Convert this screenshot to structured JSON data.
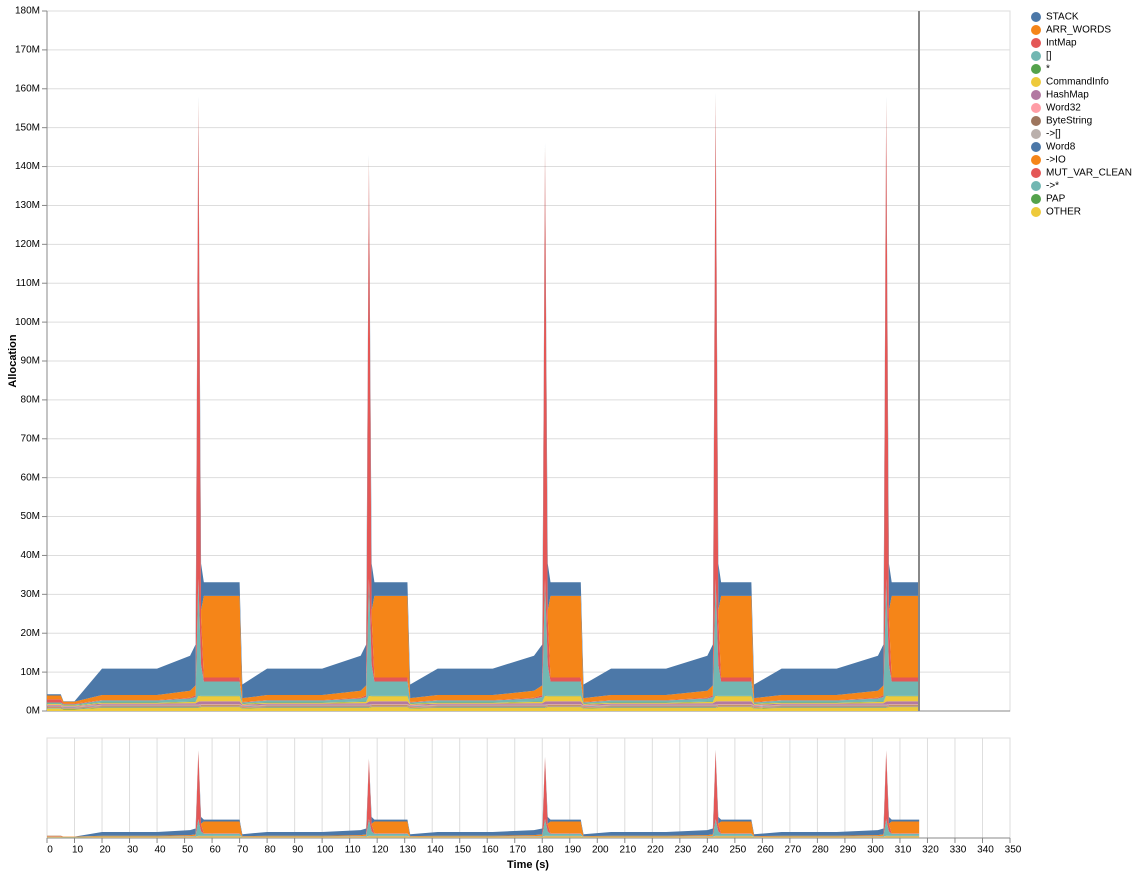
{
  "chart_data": {
    "type": "area",
    "stacked": true,
    "y_label": "Allocation",
    "x_label": "Time (s)",
    "grid": true,
    "legend": "right",
    "x": [
      0,
      5,
      6,
      10,
      20,
      40,
      52,
      54,
      55,
      56,
      57,
      70,
      71,
      80,
      100,
      114,
      116,
      117,
      118,
      119,
      131,
      132,
      142,
      162,
      177,
      180,
      181,
      182,
      183,
      194,
      195,
      205,
      225,
      240,
      242,
      243,
      244,
      245,
      256,
      257,
      267,
      287,
      302,
      304,
      305,
      306,
      307,
      317
    ],
    "xlim": [
      0,
      350
    ],
    "xticks": [
      0,
      10,
      20,
      30,
      40,
      50,
      60,
      70,
      80,
      90,
      100,
      110,
      120,
      130,
      140,
      150,
      160,
      170,
      180,
      190,
      200,
      210,
      220,
      230,
      240,
      250,
      260,
      270,
      280,
      290,
      300,
      310,
      320,
      330,
      340,
      350
    ],
    "ylim": [
      0,
      180
    ],
    "yticks": [
      {
        "value": 0,
        "label": "0M"
      },
      {
        "value": 10,
        "label": "10M"
      },
      {
        "value": 20,
        "label": "20M"
      },
      {
        "value": 30,
        "label": "30M"
      },
      {
        "value": 40,
        "label": "40M"
      },
      {
        "value": 50,
        "label": "50M"
      },
      {
        "value": 60,
        "label": "60M"
      },
      {
        "value": 70,
        "label": "70M"
      },
      {
        "value": 80,
        "label": "80M"
      },
      {
        "value": 90,
        "label": "90M"
      },
      {
        "value": 100,
        "label": "100M"
      },
      {
        "value": 110,
        "label": "110M"
      },
      {
        "value": 120,
        "label": "120M"
      },
      {
        "value": 130,
        "label": "130M"
      },
      {
        "value": 140,
        "label": "140M"
      },
      {
        "value": 150,
        "label": "150M"
      },
      {
        "value": 160,
        "label": "160M"
      },
      {
        "value": 170,
        "label": "170M"
      },
      {
        "value": 180,
        "label": "180M"
      }
    ],
    "series": [
      {
        "name": "STACK",
        "color": "#4c78a8",
        "values": [
          0.3,
          0.3,
          0.1,
          0.1,
          6.8,
          6.8,
          9,
          10.5,
          1,
          12,
          3.5,
          3.5,
          3.5,
          6.8,
          6.8,
          9,
          10.5,
          1,
          12,
          3.5,
          3.5,
          3.5,
          6.8,
          6.8,
          9,
          10.5,
          1,
          12,
          3.5,
          3.5,
          3.5,
          6.8,
          6.8,
          9,
          10.5,
          1,
          12,
          3.5,
          3.5,
          3.5,
          6.8,
          6.8,
          9,
          10.5,
          1,
          12,
          3.5,
          3.5
        ]
      },
      {
        "name": "ARR_WORDS",
        "color": "#f58518",
        "values": [
          1,
          1,
          0.5,
          0.5,
          1.3,
          1.3,
          1.8,
          2.5,
          1,
          2,
          21,
          21,
          1,
          1.3,
          1.3,
          1.8,
          2.5,
          1,
          2,
          21,
          21,
          1,
          1.3,
          1.3,
          1.8,
          2.5,
          1,
          2,
          21,
          21,
          1,
          1.3,
          1.3,
          1.8,
          2.5,
          1,
          2,
          21,
          21,
          1,
          1.3,
          1.3,
          1.8,
          2.5,
          1,
          2,
          21,
          21
        ]
      },
      {
        "name": "IntMap",
        "color": "#e45756",
        "values": [
          0.8,
          0.8,
          0.2,
          0.2,
          0.1,
          0.1,
          0.2,
          0.5,
          122,
          12,
          1,
          1,
          0.1,
          0.1,
          0.1,
          0.2,
          0.5,
          107,
          12,
          1,
          1,
          0.1,
          0.1,
          0.1,
          0.2,
          0.5,
          110,
          12,
          1,
          1,
          0.1,
          0.1,
          0.1,
          0.2,
          0.5,
          123,
          12,
          1,
          1,
          0.1,
          0.1,
          0.1,
          0.2,
          0.5,
          122,
          12,
          1,
          1
        ]
      },
      {
        "name": "[]",
        "color": "#72b7b2",
        "values": [
          0.3,
          0.3,
          0.2,
          0.2,
          0.5,
          0.5,
          0.8,
          1.2,
          30,
          8,
          3.7,
          3.7,
          0.3,
          0.5,
          0.5,
          0.8,
          1.2,
          30,
          8,
          3.7,
          3.7,
          0.3,
          0.5,
          0.5,
          0.8,
          1.2,
          30,
          8,
          3.7,
          3.7,
          0.3,
          0.5,
          0.5,
          0.8,
          1.2,
          30,
          8,
          3.7,
          3.7,
          0.3,
          0.5,
          0.5,
          0.8,
          1.2,
          30,
          8,
          3.7,
          3.7
        ]
      },
      {
        "name": "*",
        "color": "#54a24b",
        "values": [
          0.1,
          0.1,
          0.1,
          0.1,
          0.1,
          0.1,
          0.1,
          0.1,
          0.1,
          0.1,
          0.1,
          0.1,
          0.1,
          0.1,
          0.1,
          0.1,
          0.1,
          0.1,
          0.1,
          0.1,
          0.1,
          0.1,
          0.1,
          0.1,
          0.1,
          0.1,
          0.1,
          0.1,
          0.1,
          0.1,
          0.1,
          0.1,
          0.1,
          0.1,
          0.1,
          0.1,
          0.1,
          0.1,
          0.1,
          0.1,
          0.1,
          0.1,
          0.1,
          0.1,
          0.1,
          0.1,
          0.1,
          0.1
        ]
      },
      {
        "name": "CommandInfo",
        "color": "#eeca3b",
        "values": [
          0.2,
          0.2,
          0.1,
          0.1,
          0.2,
          0.2,
          0.3,
          0.3,
          1.5,
          1.3,
          1.3,
          1.3,
          0.2,
          0.2,
          0.2,
          0.3,
          0.3,
          1.5,
          1.3,
          1.3,
          1.3,
          0.2,
          0.2,
          0.2,
          0.3,
          0.3,
          1.5,
          1.3,
          1.3,
          1.3,
          0.2,
          0.2,
          0.2,
          0.3,
          0.3,
          1.5,
          1.3,
          1.3,
          1.3,
          0.2,
          0.2,
          0.2,
          0.3,
          0.3,
          1.5,
          1.3,
          1.3,
          1.3
        ]
      },
      {
        "name": "HashMap",
        "color": "#b279a2",
        "values": [
          0.2,
          0.2,
          0.1,
          0.1,
          0.3,
          0.3,
          0.4,
          0.4,
          0.8,
          0.7,
          0.7,
          0.7,
          0.2,
          0.3,
          0.3,
          0.4,
          0.4,
          0.8,
          0.7,
          0.7,
          0.7,
          0.2,
          0.3,
          0.3,
          0.4,
          0.4,
          0.8,
          0.7,
          0.7,
          0.7,
          0.2,
          0.3,
          0.3,
          0.4,
          0.4,
          0.8,
          0.7,
          0.7,
          0.7,
          0.2,
          0.3,
          0.3,
          0.4,
          0.4,
          0.8,
          0.7,
          0.7,
          0.7
        ]
      },
      {
        "name": "Word32",
        "color": "#ff9da6",
        "values": [
          0.1,
          0.1,
          0.1,
          0.1,
          0.1,
          0.1,
          0.1,
          0.1,
          0.1,
          0.1,
          0.1,
          0.1,
          0.1,
          0.1,
          0.1,
          0.1,
          0.1,
          0.1,
          0.1,
          0.1,
          0.1,
          0.1,
          0.1,
          0.1,
          0.1,
          0.1,
          0.1,
          0.1,
          0.1,
          0.1,
          0.1,
          0.1,
          0.1,
          0.1,
          0.1,
          0.1,
          0.1,
          0.1,
          0.1,
          0.1,
          0.1,
          0.1,
          0.1,
          0.1,
          0.1,
          0.1,
          0.1,
          0.1
        ]
      },
      {
        "name": "ByteString",
        "color": "#9d755d",
        "values": [
          0.1,
          0.1,
          0.1,
          0.1,
          0.1,
          0.1,
          0.1,
          0.1,
          0.1,
          0.1,
          0.1,
          0.1,
          0.1,
          0.1,
          0.1,
          0.1,
          0.1,
          0.1,
          0.1,
          0.1,
          0.1,
          0.1,
          0.1,
          0.1,
          0.1,
          0.1,
          0.1,
          0.1,
          0.1,
          0.1,
          0.1,
          0.1,
          0.1,
          0.1,
          0.1,
          0.1,
          0.1,
          0.1,
          0.1,
          0.1,
          0.1,
          0.1,
          0.1,
          0.1,
          0.1,
          0.1,
          0.1,
          0.1
        ]
      },
      {
        "name": "->[]",
        "color": "#bab0ac",
        "values": [
          0.1,
          0.1,
          0.1,
          0.1,
          0.1,
          0.1,
          0.1,
          0.1,
          0.1,
          0.1,
          0.1,
          0.1,
          0.1,
          0.1,
          0.1,
          0.1,
          0.1,
          0.1,
          0.1,
          0.1,
          0.1,
          0.1,
          0.1,
          0.1,
          0.1,
          0.1,
          0.1,
          0.1,
          0.1,
          0.1,
          0.1,
          0.1,
          0.1,
          0.1,
          0.1,
          0.1,
          0.1,
          0.1,
          0.1,
          0.1,
          0.1,
          0.1,
          0.1,
          0.1,
          0.1,
          0.1,
          0.1,
          0.1
        ]
      },
      {
        "name": "Word8",
        "color": "#4c78a8",
        "values": [
          0.1,
          0.1,
          0.1,
          0.1,
          0.1,
          0.1,
          0.1,
          0.1,
          0.1,
          0.1,
          0.1,
          0.1,
          0.1,
          0.1,
          0.1,
          0.1,
          0.1,
          0.1,
          0.1,
          0.1,
          0.1,
          0.1,
          0.1,
          0.1,
          0.1,
          0.1,
          0.1,
          0.1,
          0.1,
          0.1,
          0.1,
          0.1,
          0.1,
          0.1,
          0.1,
          0.1,
          0.1,
          0.1,
          0.1,
          0.1,
          0.1,
          0.1,
          0.1,
          0.1,
          0.1,
          0.1,
          0.1,
          0.1
        ]
      },
      {
        "name": "->IO",
        "color": "#f58518",
        "values": [
          0.1,
          0.1,
          0.1,
          0.1,
          0.1,
          0.1,
          0.1,
          0.1,
          0.1,
          0.1,
          0.1,
          0.1,
          0.1,
          0.1,
          0.1,
          0.1,
          0.1,
          0.1,
          0.1,
          0.1,
          0.1,
          0.1,
          0.1,
          0.1,
          0.1,
          0.1,
          0.1,
          0.1,
          0.1,
          0.1,
          0.1,
          0.1,
          0.1,
          0.1,
          0.1,
          0.1,
          0.1,
          0.1,
          0.1,
          0.1,
          0.1,
          0.1,
          0.1,
          0.1,
          0.1,
          0.1,
          0.1,
          0.1
        ]
      },
      {
        "name": "MUT_VAR_CLEAN",
        "color": "#e45756",
        "values": [
          0.1,
          0.1,
          0.1,
          0.1,
          0.1,
          0.1,
          0.1,
          0.1,
          0.1,
          0.1,
          0.1,
          0.1,
          0.1,
          0.1,
          0.1,
          0.1,
          0.1,
          0.1,
          0.1,
          0.1,
          0.1,
          0.1,
          0.1,
          0.1,
          0.1,
          0.1,
          0.1,
          0.1,
          0.1,
          0.1,
          0.1,
          0.1,
          0.1,
          0.1,
          0.1,
          0.1,
          0.1,
          0.1,
          0.1,
          0.1,
          0.1,
          0.1,
          0.1,
          0.1,
          0.1,
          0.1,
          0.1,
          0.1
        ]
      },
      {
        "name": "->*",
        "color": "#72b7b2",
        "values": [
          0.1,
          0.1,
          0.1,
          0.1,
          0.1,
          0.1,
          0.1,
          0.1,
          0.1,
          0.1,
          0.1,
          0.1,
          0.1,
          0.1,
          0.1,
          0.1,
          0.1,
          0.1,
          0.1,
          0.1,
          0.1,
          0.1,
          0.1,
          0.1,
          0.1,
          0.1,
          0.1,
          0.1,
          0.1,
          0.1,
          0.1,
          0.1,
          0.1,
          0.1,
          0.1,
          0.1,
          0.1,
          0.1,
          0.1,
          0.1,
          0.1,
          0.1,
          0.1,
          0.1,
          0.1,
          0.1,
          0.1,
          0.1
        ]
      },
      {
        "name": "PAP",
        "color": "#54a24b",
        "values": [
          0.1,
          0.1,
          0.1,
          0.1,
          0.1,
          0.1,
          0.1,
          0.1,
          0.1,
          0.1,
          0.1,
          0.1,
          0.1,
          0.1,
          0.1,
          0.1,
          0.1,
          0.1,
          0.1,
          0.1,
          0.1,
          0.1,
          0.1,
          0.1,
          0.1,
          0.1,
          0.1,
          0.1,
          0.1,
          0.1,
          0.1,
          0.1,
          0.1,
          0.1,
          0.1,
          0.1,
          0.1,
          0.1,
          0.1,
          0.1,
          0.1,
          0.1,
          0.1,
          0.1,
          0.1,
          0.1,
          0.1,
          0.1
        ]
      },
      {
        "name": "OTHER",
        "color": "#eeca3b",
        "values": [
          0.6,
          0.6,
          0.4,
          0.4,
          0.8,
          0.8,
          0.8,
          0.8,
          0.8,
          1,
          1,
          1,
          0.6,
          0.8,
          0.8,
          0.8,
          0.8,
          0.8,
          1,
          1,
          1,
          0.6,
          0.8,
          0.8,
          0.8,
          0.8,
          0.8,
          1,
          1,
          1,
          0.6,
          0.8,
          0.8,
          0.8,
          0.8,
          0.8,
          1,
          1,
          1,
          0.6,
          0.8,
          0.8,
          0.8,
          0.8,
          0.8,
          1,
          1,
          1
        ]
      }
    ]
  }
}
